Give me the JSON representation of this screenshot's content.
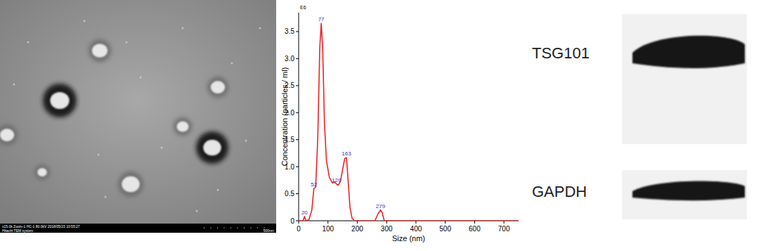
{
  "chart_data": {
    "type": "line",
    "y_multiplier": "E6",
    "y_label": "Concentration (particles / ml)",
    "x_label": "Size (nm)",
    "xlim": [
      0,
      750
    ],
    "ylim": [
      0,
      3.85
    ],
    "xticks": [
      0,
      100,
      200,
      300,
      400,
      500,
      600,
      700
    ],
    "yticks": [
      0,
      0.5,
      {
        "value": 1,
        "label": "1.0"
      },
      1.5,
      {
        "value": 2,
        "label": "2.0"
      },
      2.5,
      {
        "value": 3,
        "label": "3.0"
      },
      3.5
    ],
    "series": [
      {
        "color": "#e8252a",
        "x": [
          0,
          15,
          20,
          25,
          35,
          45,
          52,
          58,
          65,
          72,
          77,
          82,
          88,
          95,
          105,
          115,
          122,
          129,
          135,
          142,
          150,
          157,
          163,
          168,
          175,
          182,
          190,
          260,
          270,
          279,
          285,
          292,
          750
        ],
        "values": [
          0,
          0,
          0.08,
          0,
          0.02,
          0.2,
          0.6,
          0.62,
          1.5,
          3.2,
          3.65,
          3.2,
          1.8,
          1.1,
          0.8,
          0.7,
          0.72,
          0.68,
          0.66,
          0.72,
          0.95,
          1.15,
          1.17,
          0.8,
          0.25,
          0.05,
          0,
          0,
          0.12,
          0.2,
          0.15,
          0,
          0
        ]
      }
    ],
    "annotations": [
      {
        "x": 20,
        "y": 0.08,
        "text": "20"
      },
      {
        "x": 52,
        "y": 0.6,
        "text": "52"
      },
      {
        "x": 77,
        "y": 3.65,
        "text": "77"
      },
      {
        "x": 129,
        "y": 0.68,
        "text": "129"
      },
      {
        "x": 163,
        "y": 1.17,
        "text": "163"
      },
      {
        "x": 279,
        "y": 0.2,
        "text": "279"
      }
    ]
  },
  "tem_image": {
    "info_line": "x15.0k Zoom-1 HC-1 80.0kV 2018/05/23 10:55:27",
    "system": "Hitachi TEM system",
    "scale_bar": "500nm"
  },
  "western_blot": {
    "bands": [
      "TSG101",
      "GAPDH"
    ]
  }
}
